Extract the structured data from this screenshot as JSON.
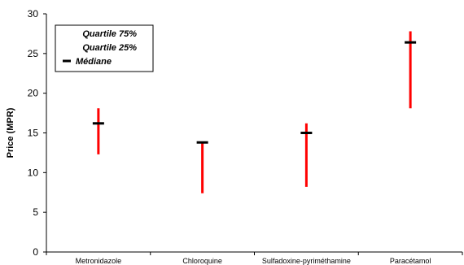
{
  "chart_data": {
    "type": "range",
    "categories": [
      "Metronidazole",
      "Chloroquine",
      "Sulfadoxine-pyriméthamine",
      "Paracétamol"
    ],
    "series": [
      {
        "name": "Quartile 75%",
        "values": [
          18.1,
          13.9,
          16.2,
          27.8
        ]
      },
      {
        "name": "Quartile 25%",
        "values": [
          12.3,
          7.4,
          8.2,
          18.1
        ]
      },
      {
        "name": "Médiane",
        "values": [
          16.2,
          13.8,
          15.0,
          26.4
        ]
      }
    ],
    "xlabel": "",
    "ylabel": "Price (MPR)",
    "ylim": [
      0,
      30
    ],
    "yticks": [
      0,
      5,
      10,
      15,
      20,
      25,
      30
    ],
    "grid": false,
    "legend_position": "top-left",
    "colors": {
      "range": "#ff0000",
      "median": "#000000",
      "axis": "#000000"
    }
  }
}
